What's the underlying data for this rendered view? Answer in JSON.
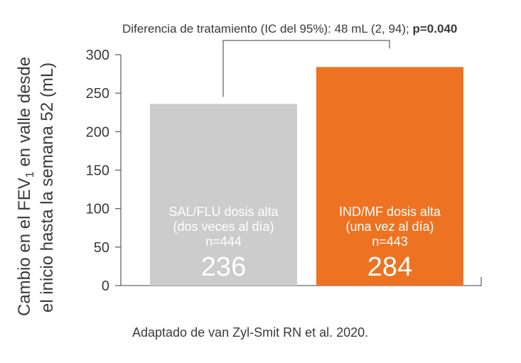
{
  "chart_data": {
    "type": "bar",
    "ylabel": {
      "line1_prefix": "Cambio en el FEV",
      "line1_subscript": "1",
      "line1_suffix": " en valle desde",
      "line2": "el inicio hasta la semana 52 (mL)"
    },
    "ylim": [
      0,
      300
    ],
    "yticks": [
      0,
      50,
      100,
      150,
      200,
      250,
      300
    ],
    "categories": [
      "SAL/FLU dosis alta",
      "IND/MF dosis alta"
    ],
    "values": [
      236,
      284
    ],
    "bars": [
      {
        "label_line1": "SAL/FLU dosis alta",
        "label_line2": "(dos veces al día)",
        "n_label": "n=444",
        "value": 236,
        "value_label": "236",
        "color": "#cccccc"
      },
      {
        "label_line1": "IND/MF dosis alta",
        "label_line2": "(una vez al día)",
        "n_label": "n=443",
        "value": 284,
        "value_label": "284",
        "color": "#ed7322"
      }
    ],
    "annotation": {
      "text": "Diferencia de tratamiento (IC del 95%): 48 mL (2, 94); ",
      "bold_text": "p=0.040"
    },
    "grid": false
  },
  "source_note": "Adaptado de van Zyl-Smit RN et al. 2020."
}
